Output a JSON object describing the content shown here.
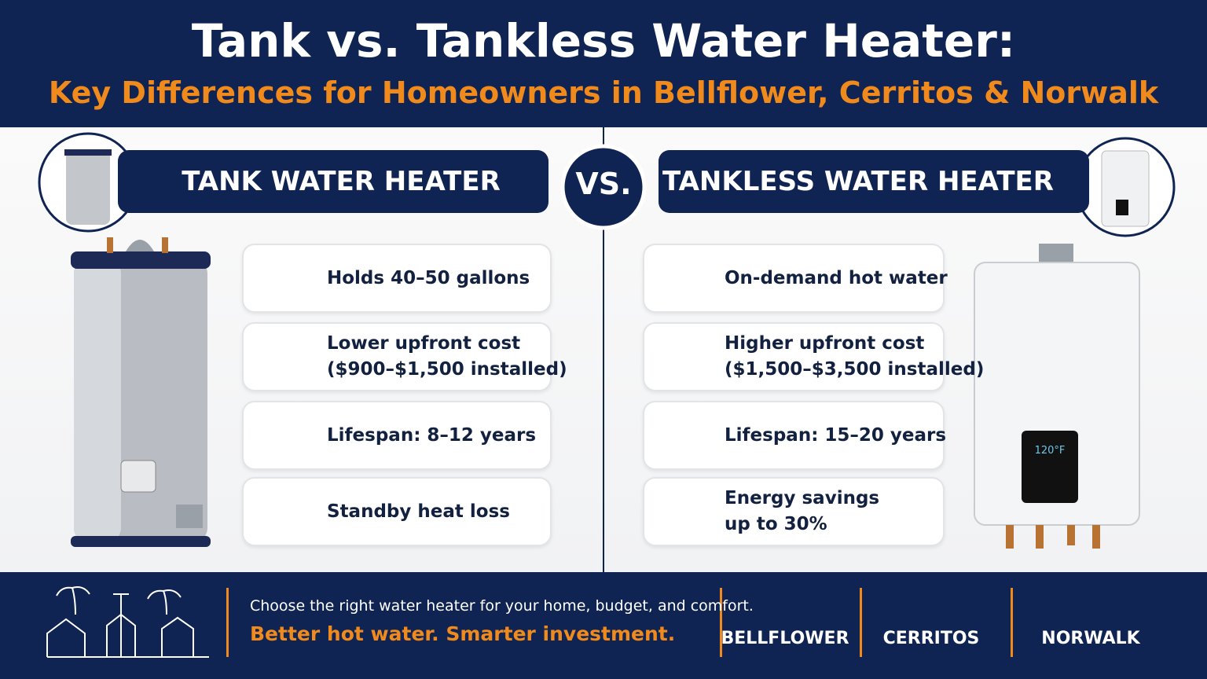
{
  "header": {
    "title": "Tank vs. Tankless Water Heater:",
    "subtitle": "Key Differences for Homeowners in Bellflower, Cerritos & Norwalk"
  },
  "vs": "VS.",
  "left": {
    "heading": "TANK WATER HEATER",
    "features": [
      {
        "lines": [
          "Holds 40–50 gallons"
        ]
      },
      {
        "lines": [
          "Lower upfront cost",
          "($900–$1,500 installed)"
        ]
      },
      {
        "lines": [
          "Lifespan: 8–12 years"
        ]
      },
      {
        "lines": [
          "Standby heat loss"
        ]
      }
    ]
  },
  "right": {
    "heading": "TANKLESS WATER HEATER",
    "display": "120°F",
    "features": [
      {
        "lines": [
          "On-demand hot water"
        ]
      },
      {
        "lines": [
          "Higher upfront cost",
          "($1,500–$3,500 installed)"
        ]
      },
      {
        "lines": [
          "Lifespan: 15–20 years"
        ]
      },
      {
        "lines": [
          "Energy savings",
          "up to 30%"
        ]
      }
    ]
  },
  "footer": {
    "tagline": "Choose the right water heater for your home, budget, and comfort.",
    "slogan": "Better hot water. Smarter investment.",
    "cities": [
      "BELLFLOWER",
      "CERRITOS",
      "NORWALK"
    ]
  }
}
